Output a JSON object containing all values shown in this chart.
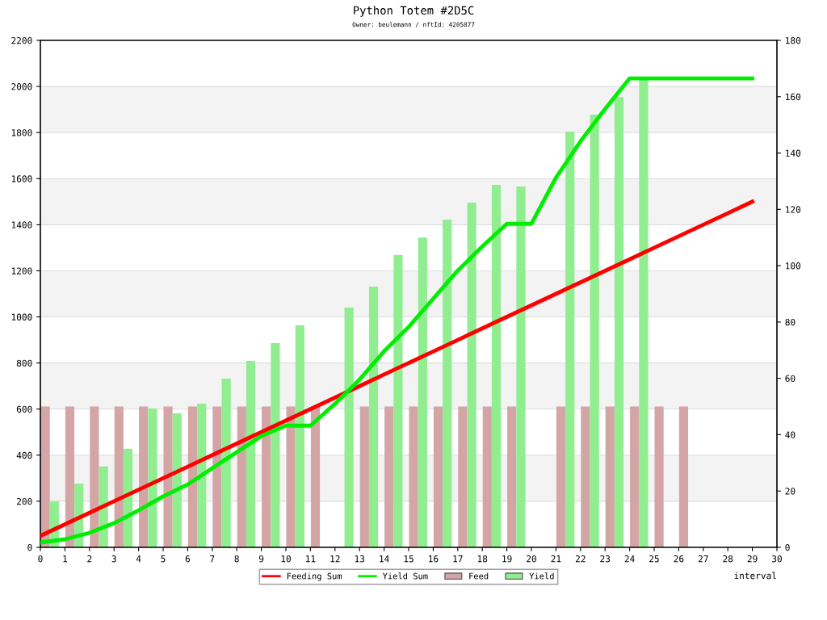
{
  "chart_data": {
    "type": "bar",
    "title": "Python Totem #2D5C",
    "subtitle": "Owner: beulemann / nftId: 4205877",
    "xlabel": "interval",
    "xlim": [
      0,
      30
    ],
    "xticks": [
      0,
      1,
      2,
      3,
      4,
      5,
      6,
      7,
      8,
      9,
      10,
      11,
      12,
      13,
      14,
      15,
      16,
      17,
      18,
      19,
      20,
      21,
      22,
      23,
      24,
      25,
      26,
      27,
      28,
      29,
      30
    ],
    "ylim": [
      0,
      2200
    ],
    "yticks": [
      0,
      200,
      400,
      600,
      800,
      1000,
      1200,
      1400,
      1600,
      1800,
      2000,
      2200
    ],
    "y2lim": [
      0,
      180
    ],
    "y2ticks": [
      0,
      20,
      40,
      60,
      80,
      100,
      120,
      140,
      160,
      180
    ],
    "grid": "y",
    "legend": "bottom",
    "bands": [
      {
        "axis": "y",
        "from": 200,
        "to": 400,
        "color": "#f3f3f3"
      },
      {
        "axis": "y",
        "from": 600,
        "to": 800,
        "color": "#f3f3f3"
      },
      {
        "axis": "y",
        "from": 1000,
        "to": 1200,
        "color": "#f3f3f3"
      },
      {
        "axis": "y",
        "from": 1400,
        "to": 1600,
        "color": "#f3f3f3"
      },
      {
        "axis": "y",
        "from": 1800,
        "to": 2000,
        "color": "#f3f3f3"
      }
    ],
    "series": [
      {
        "name": "Feeding Sum",
        "type": "line",
        "color": "#ff0000",
        "x": [
          0,
          1,
          2,
          3,
          4,
          5,
          6,
          7,
          8,
          9,
          10,
          11,
          12,
          13,
          14,
          15,
          16,
          17,
          18,
          19,
          20,
          21,
          22,
          23,
          24,
          25,
          26,
          27,
          28,
          29
        ],
        "values": [
          50,
          100,
          150,
          200,
          250,
          300,
          350,
          400,
          450,
          500,
          550,
          600,
          650,
          700,
          750,
          800,
          850,
          900,
          950,
          1000,
          1050,
          1100,
          1150,
          1200,
          1250,
          1300,
          1350,
          1400,
          1450,
          1500
        ]
      },
      {
        "name": "Yield Sum",
        "type": "line",
        "color": "#00ee00",
        "x": [
          0,
          1,
          2,
          3,
          4,
          5,
          6,
          7,
          8,
          9,
          10,
          11,
          12,
          13,
          14,
          15,
          16,
          17,
          18,
          19,
          20,
          21,
          22,
          23,
          24,
          25,
          26,
          27,
          28,
          29
        ],
        "values": [
          21,
          35,
          63,
          105,
          161,
          221,
          273,
          343,
          413,
          483,
          528,
          528,
          623,
          728,
          851,
          956,
          1079,
          1201,
          1306,
          1404,
          1404,
          1604,
          1762,
          1902,
          2035,
          2035,
          2035,
          2035,
          2035,
          2035
        ]
      },
      {
        "name": "Feed",
        "axis": "y2",
        "color": "#d4a5a5",
        "x": [
          0.2,
          1.2,
          2.2,
          3.2,
          4.2,
          5.2,
          6.2,
          7.2,
          8.2,
          9.2,
          10.2,
          11.2,
          13.2,
          14.2,
          15.2,
          16.2,
          17.2,
          18.2,
          19.2,
          21.2,
          22.2,
          23.2,
          24.2,
          25.2,
          26.2
        ],
        "values": [
          50,
          50,
          50,
          50,
          50,
          50,
          50,
          50,
          50,
          50,
          50,
          50,
          50,
          50,
          50,
          50,
          50,
          50,
          50,
          50,
          50,
          50,
          50,
          50,
          50
        ]
      },
      {
        "name": "Yield",
        "axis": "y2",
        "color": "#90ee90",
        "x": [
          0.57,
          1.57,
          2.57,
          3.57,
          4.57,
          5.57,
          6.57,
          7.57,
          8.57,
          9.57,
          10.57,
          12.57,
          13.57,
          14.57,
          15.57,
          16.57,
          17.57,
          18.57,
          19.57,
          21.57,
          22.57,
          23.57,
          24.57
        ],
        "values": [
          16.3,
          22.6,
          28.7,
          35,
          49.3,
          47.6,
          51,
          59.9,
          66.2,
          72.5,
          78.8,
          85.1,
          92.6,
          103.8,
          110,
          116.3,
          122.4,
          128.7,
          128.1,
          147.6,
          153.6,
          159.9,
          166.2
        ]
      }
    ]
  }
}
